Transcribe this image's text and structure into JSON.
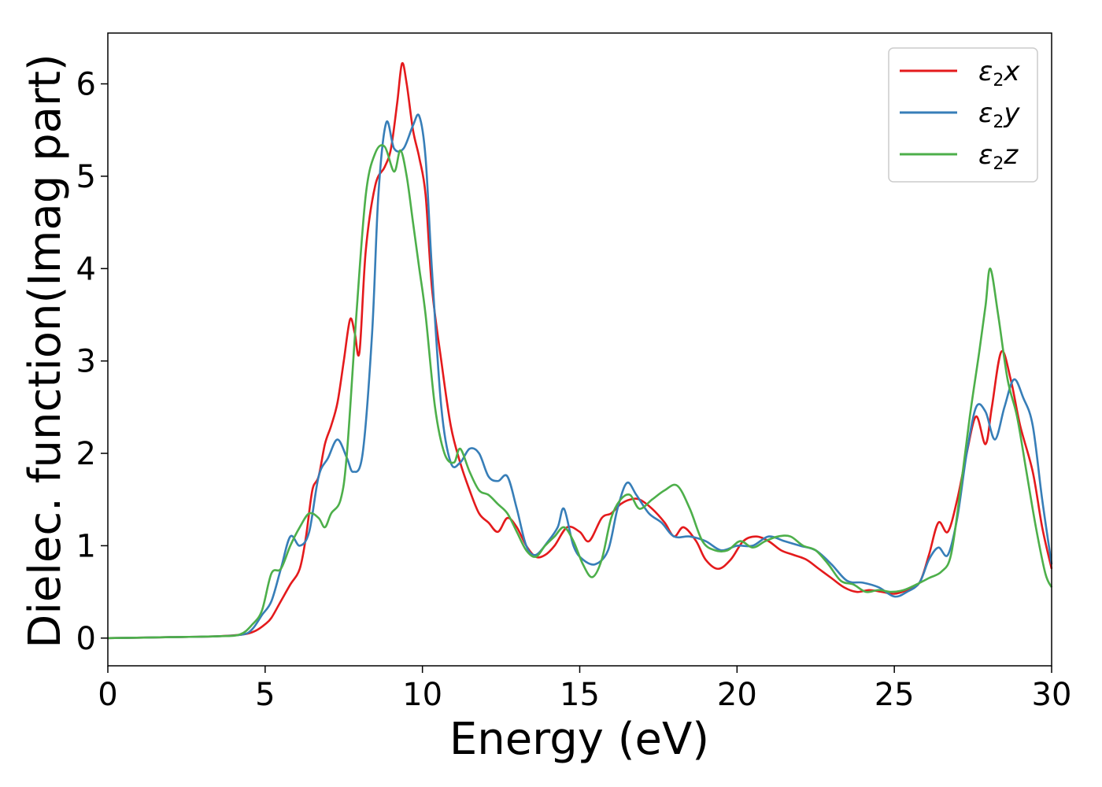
{
  "chart_data": {
    "type": "line",
    "xlabel": "Energy (eV)",
    "ylabel": "Dielec. function(Imag part)",
    "xlim": [
      0,
      30
    ],
    "ylim": [
      -0.3,
      6.55
    ],
    "xticks": [
      "0",
      "5",
      "10",
      "15",
      "20",
      "25",
      "30"
    ],
    "yticks": [
      "0",
      "1",
      "2",
      "3",
      "4",
      "5",
      "6"
    ],
    "grid": false,
    "legend_position": "top-right",
    "series": [
      {
        "name": "ε2x",
        "symbol": "ε",
        "sub": "2",
        "suffix": "x",
        "color": "#e41a1c",
        "points": [
          [
            0,
            0
          ],
          [
            2,
            0.01
          ],
          [
            3.5,
            0.02
          ],
          [
            4.3,
            0.04
          ],
          [
            4.7,
            0.08
          ],
          [
            5,
            0.15
          ],
          [
            5.2,
            0.22
          ],
          [
            5.5,
            0.4
          ],
          [
            5.8,
            0.58
          ],
          [
            6.1,
            0.75
          ],
          [
            6.3,
            1.1
          ],
          [
            6.5,
            1.6
          ],
          [
            6.7,
            1.75
          ],
          [
            6.9,
            2.1
          ],
          [
            7.1,
            2.3
          ],
          [
            7.3,
            2.55
          ],
          [
            7.5,
            3.0
          ],
          [
            7.7,
            3.45
          ],
          [
            7.85,
            3.3
          ],
          [
            8.0,
            3.1
          ],
          [
            8.2,
            4.2
          ],
          [
            8.5,
            4.9
          ],
          [
            8.8,
            5.1
          ],
          [
            9.0,
            5.3
          ],
          [
            9.2,
            5.8
          ],
          [
            9.35,
            6.22
          ],
          [
            9.5,
            6.0
          ],
          [
            9.7,
            5.5
          ],
          [
            9.9,
            5.2
          ],
          [
            10.1,
            4.8
          ],
          [
            10.3,
            3.8
          ],
          [
            10.6,
            3.0
          ],
          [
            10.9,
            2.3
          ],
          [
            11.2,
            1.9
          ],
          [
            11.5,
            1.6
          ],
          [
            11.8,
            1.35
          ],
          [
            12.1,
            1.25
          ],
          [
            12.4,
            1.15
          ],
          [
            12.7,
            1.3
          ],
          [
            13.0,
            1.2
          ],
          [
            13.3,
            1.0
          ],
          [
            13.6,
            0.88
          ],
          [
            13.9,
            0.9
          ],
          [
            14.2,
            1.0
          ],
          [
            14.6,
            1.2
          ],
          [
            15.0,
            1.15
          ],
          [
            15.3,
            1.05
          ],
          [
            15.7,
            1.3
          ],
          [
            16.0,
            1.35
          ],
          [
            16.3,
            1.45
          ],
          [
            16.6,
            1.5
          ],
          [
            16.9,
            1.5
          ],
          [
            17.3,
            1.4
          ],
          [
            17.7,
            1.25
          ],
          [
            18.0,
            1.1
          ],
          [
            18.3,
            1.2
          ],
          [
            18.7,
            1.05
          ],
          [
            19.0,
            0.85
          ],
          [
            19.4,
            0.75
          ],
          [
            19.8,
            0.85
          ],
          [
            20.2,
            1.05
          ],
          [
            20.6,
            1.1
          ],
          [
            21.0,
            1.05
          ],
          [
            21.4,
            0.95
          ],
          [
            21.8,
            0.9
          ],
          [
            22.2,
            0.85
          ],
          [
            22.6,
            0.75
          ],
          [
            23.0,
            0.65
          ],
          [
            23.4,
            0.55
          ],
          [
            23.8,
            0.5
          ],
          [
            24.2,
            0.52
          ],
          [
            24.6,
            0.5
          ],
          [
            25.0,
            0.48
          ],
          [
            25.4,
            0.52
          ],
          [
            25.8,
            0.6
          ],
          [
            26.1,
            0.9
          ],
          [
            26.4,
            1.25
          ],
          [
            26.7,
            1.15
          ],
          [
            27.0,
            1.5
          ],
          [
            27.3,
            2.0
          ],
          [
            27.6,
            2.4
          ],
          [
            27.9,
            2.1
          ],
          [
            28.1,
            2.5
          ],
          [
            28.4,
            3.1
          ],
          [
            28.7,
            2.8
          ],
          [
            29.0,
            2.3
          ],
          [
            29.4,
            1.8
          ],
          [
            29.7,
            1.2
          ],
          [
            30.0,
            0.75
          ]
        ]
      },
      {
        "name": "ε2y",
        "symbol": "ε",
        "sub": "2",
        "suffix": "y",
        "color": "#377eb8",
        "points": [
          [
            0,
            0
          ],
          [
            2,
            0.01
          ],
          [
            3.5,
            0.02
          ],
          [
            4.3,
            0.04
          ],
          [
            4.6,
            0.1
          ],
          [
            4.9,
            0.25
          ],
          [
            5.2,
            0.4
          ],
          [
            5.5,
            0.75
          ],
          [
            5.8,
            1.1
          ],
          [
            6.1,
            1.0
          ],
          [
            6.4,
            1.15
          ],
          [
            6.7,
            1.75
          ],
          [
            7.0,
            1.95
          ],
          [
            7.3,
            2.15
          ],
          [
            7.6,
            1.95
          ],
          [
            7.8,
            1.8
          ],
          [
            8.1,
            2.0
          ],
          [
            8.4,
            3.3
          ],
          [
            8.6,
            4.8
          ],
          [
            8.85,
            5.58
          ],
          [
            9.1,
            5.3
          ],
          [
            9.4,
            5.3
          ],
          [
            9.7,
            5.55
          ],
          [
            9.9,
            5.65
          ],
          [
            10.1,
            5.2
          ],
          [
            10.3,
            4.0
          ],
          [
            10.6,
            2.5
          ],
          [
            10.9,
            1.9
          ],
          [
            11.2,
            1.9
          ],
          [
            11.5,
            2.05
          ],
          [
            11.8,
            2.0
          ],
          [
            12.1,
            1.75
          ],
          [
            12.4,
            1.7
          ],
          [
            12.7,
            1.75
          ],
          [
            13.0,
            1.4
          ],
          [
            13.3,
            1.0
          ],
          [
            13.6,
            0.9
          ],
          [
            14.0,
            1.05
          ],
          [
            14.3,
            1.2
          ],
          [
            14.5,
            1.4
          ],
          [
            14.8,
            1.0
          ],
          [
            15.1,
            0.85
          ],
          [
            15.5,
            0.8
          ],
          [
            15.9,
            0.95
          ],
          [
            16.2,
            1.4
          ],
          [
            16.5,
            1.68
          ],
          [
            16.8,
            1.55
          ],
          [
            17.2,
            1.35
          ],
          [
            17.6,
            1.25
          ],
          [
            18.0,
            1.1
          ],
          [
            18.5,
            1.1
          ],
          [
            19.0,
            1.05
          ],
          [
            19.5,
            0.95
          ],
          [
            20.0,
            1.0
          ],
          [
            20.5,
            1.0
          ],
          [
            21.0,
            1.1
          ],
          [
            21.5,
            1.05
          ],
          [
            22.0,
            1.0
          ],
          [
            22.5,
            0.95
          ],
          [
            23.0,
            0.8
          ],
          [
            23.5,
            0.62
          ],
          [
            24.0,
            0.6
          ],
          [
            24.5,
            0.55
          ],
          [
            25.0,
            0.45
          ],
          [
            25.4,
            0.5
          ],
          [
            25.8,
            0.6
          ],
          [
            26.1,
            0.85
          ],
          [
            26.4,
            0.98
          ],
          [
            26.7,
            0.9
          ],
          [
            27.0,
            1.3
          ],
          [
            27.3,
            2.0
          ],
          [
            27.6,
            2.5
          ],
          [
            27.9,
            2.45
          ],
          [
            28.2,
            2.15
          ],
          [
            28.5,
            2.5
          ],
          [
            28.8,
            2.8
          ],
          [
            29.1,
            2.6
          ],
          [
            29.4,
            2.3
          ],
          [
            29.7,
            1.5
          ],
          [
            30.0,
            0.8
          ]
        ]
      },
      {
        "name": "ε2z",
        "symbol": "ε",
        "sub": "2",
        "suffix": "z",
        "color": "#4daf4a",
        "points": [
          [
            0,
            0
          ],
          [
            2,
            0.01
          ],
          [
            3.5,
            0.02
          ],
          [
            4.2,
            0.04
          ],
          [
            4.6,
            0.15
          ],
          [
            4.9,
            0.3
          ],
          [
            5.2,
            0.7
          ],
          [
            5.5,
            0.75
          ],
          [
            5.8,
            1.0
          ],
          [
            6.1,
            1.2
          ],
          [
            6.4,
            1.35
          ],
          [
            6.7,
            1.3
          ],
          [
            6.9,
            1.2
          ],
          [
            7.1,
            1.35
          ],
          [
            7.4,
            1.5
          ],
          [
            7.6,
            2.0
          ],
          [
            7.9,
            3.5
          ],
          [
            8.2,
            4.8
          ],
          [
            8.5,
            5.25
          ],
          [
            8.8,
            5.32
          ],
          [
            9.1,
            5.05
          ],
          [
            9.3,
            5.28
          ],
          [
            9.5,
            5.0
          ],
          [
            9.7,
            4.5
          ],
          [
            9.9,
            4.0
          ],
          [
            10.1,
            3.5
          ],
          [
            10.4,
            2.5
          ],
          [
            10.7,
            2.0
          ],
          [
            11.0,
            1.9
          ],
          [
            11.2,
            2.05
          ],
          [
            11.5,
            1.8
          ],
          [
            11.8,
            1.6
          ],
          [
            12.1,
            1.55
          ],
          [
            12.4,
            1.45
          ],
          [
            12.7,
            1.35
          ],
          [
            13.0,
            1.15
          ],
          [
            13.3,
            0.95
          ],
          [
            13.6,
            0.88
          ],
          [
            13.9,
            1.0
          ],
          [
            14.2,
            1.1
          ],
          [
            14.5,
            1.2
          ],
          [
            14.8,
            1.05
          ],
          [
            15.1,
            0.8
          ],
          [
            15.4,
            0.66
          ],
          [
            15.7,
            0.85
          ],
          [
            16.0,
            1.3
          ],
          [
            16.3,
            1.5
          ],
          [
            16.6,
            1.55
          ],
          [
            16.9,
            1.4
          ],
          [
            17.3,
            1.5
          ],
          [
            17.7,
            1.6
          ],
          [
            18.1,
            1.65
          ],
          [
            18.5,
            1.4
          ],
          [
            18.9,
            1.05
          ],
          [
            19.3,
            0.95
          ],
          [
            19.7,
            0.95
          ],
          [
            20.1,
            1.05
          ],
          [
            20.5,
            0.98
          ],
          [
            20.9,
            1.05
          ],
          [
            21.3,
            1.1
          ],
          [
            21.7,
            1.1
          ],
          [
            22.1,
            1.0
          ],
          [
            22.5,
            0.95
          ],
          [
            22.9,
            0.8
          ],
          [
            23.3,
            0.62
          ],
          [
            23.7,
            0.58
          ],
          [
            24.1,
            0.5
          ],
          [
            24.5,
            0.52
          ],
          [
            24.9,
            0.5
          ],
          [
            25.3,
            0.52
          ],
          [
            25.7,
            0.58
          ],
          [
            26.1,
            0.65
          ],
          [
            26.5,
            0.72
          ],
          [
            26.8,
            0.9
          ],
          [
            27.1,
            1.6
          ],
          [
            27.4,
            2.4
          ],
          [
            27.7,
            3.1
          ],
          [
            27.9,
            3.6
          ],
          [
            28.05,
            4.0
          ],
          [
            28.3,
            3.5
          ],
          [
            28.6,
            2.8
          ],
          [
            28.9,
            2.4
          ],
          [
            29.2,
            1.8
          ],
          [
            29.5,
            1.2
          ],
          [
            29.8,
            0.7
          ],
          [
            30.0,
            0.55
          ]
        ]
      }
    ]
  }
}
